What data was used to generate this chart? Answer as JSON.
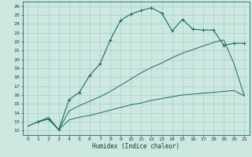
{
  "title": "",
  "xlabel": "Humidex (Indice chaleur)",
  "bg_color": "#cce8e0",
  "line_color": "#1a6b5e",
  "grid_color": "#aacfc8",
  "xlim": [
    -0.5,
    21.5
  ],
  "ylim": [
    11.5,
    26.5
  ],
  "xticks": [
    0,
    1,
    2,
    3,
    4,
    5,
    6,
    7,
    8,
    9,
    10,
    11,
    12,
    13,
    14,
    15,
    16,
    17,
    18,
    19,
    20,
    21
  ],
  "yticks": [
    12,
    13,
    14,
    15,
    16,
    17,
    18,
    19,
    20,
    21,
    22,
    23,
    24,
    25,
    26
  ],
  "series": [
    {
      "x": [
        0,
        1,
        2,
        3,
        4,
        5,
        6,
        7,
        8,
        9,
        10,
        11,
        12,
        13,
        14,
        15,
        16,
        17,
        18,
        19,
        20,
        21
      ],
      "y": [
        12.5,
        13.0,
        13.3,
        12.1,
        13.2,
        13.5,
        13.7,
        14.0,
        14.3,
        14.6,
        14.9,
        15.1,
        15.4,
        15.6,
        15.8,
        16.0,
        16.1,
        16.2,
        16.3,
        16.4,
        16.5,
        15.9
      ],
      "marker": false
    },
    {
      "x": [
        0,
        1,
        2,
        3,
        4,
        5,
        6,
        7,
        8,
        9,
        10,
        11,
        12,
        13,
        14,
        15,
        16,
        17,
        18,
        19,
        20,
        21
      ],
      "y": [
        12.5,
        13.0,
        13.5,
        12.1,
        14.2,
        14.8,
        15.3,
        15.8,
        16.4,
        17.1,
        17.8,
        18.5,
        19.1,
        19.6,
        20.2,
        20.7,
        21.1,
        21.5,
        21.9,
        22.2,
        19.5,
        15.9
      ],
      "marker": false
    },
    {
      "x": [
        1,
        2,
        3,
        4,
        5,
        6,
        7,
        8,
        9,
        10,
        11,
        12,
        13,
        14,
        15,
        16,
        17,
        18,
        19,
        20,
        21
      ],
      "y": [
        13.0,
        13.3,
        12.1,
        15.5,
        16.3,
        18.2,
        19.5,
        22.2,
        24.4,
        25.1,
        25.5,
        25.8,
        25.2,
        23.2,
        24.5,
        23.4,
        23.3,
        23.3,
        21.6,
        21.8,
        21.8
      ],
      "marker": true
    }
  ]
}
